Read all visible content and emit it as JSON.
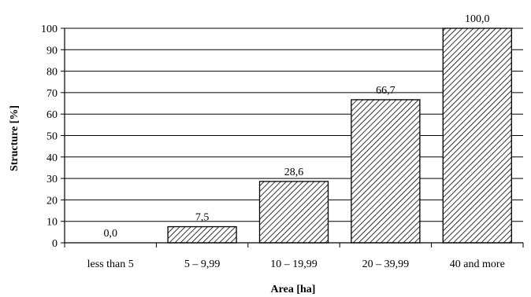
{
  "chart_data": {
    "type": "bar",
    "categories": [
      "less than  5",
      "5 – 9,99",
      "10 – 19,99",
      "20 – 39,99",
      "40 and more"
    ],
    "values": [
      0.0,
      7.5,
      28.6,
      66.7,
      100.0
    ],
    "data_labels": [
      "0,0",
      "7,5",
      "28,6",
      "66,7",
      "100,0"
    ],
    "xlabel": "Area [ha]",
    "ylabel": "Structure [%]",
    "ylim": [
      0,
      100
    ],
    "yticks": [
      0,
      10,
      20,
      30,
      40,
      50,
      60,
      70,
      80,
      90,
      100
    ],
    "ytick_labels": [
      "0",
      "10",
      "20",
      "30",
      "40",
      "50",
      "60",
      "70",
      "80",
      "90",
      "100"
    ],
    "grid": true,
    "bar_fill": "diagonal-hatch",
    "colors": {
      "bar_stroke": "#000000",
      "hatch": "#000000",
      "background": "#ffffff"
    }
  }
}
